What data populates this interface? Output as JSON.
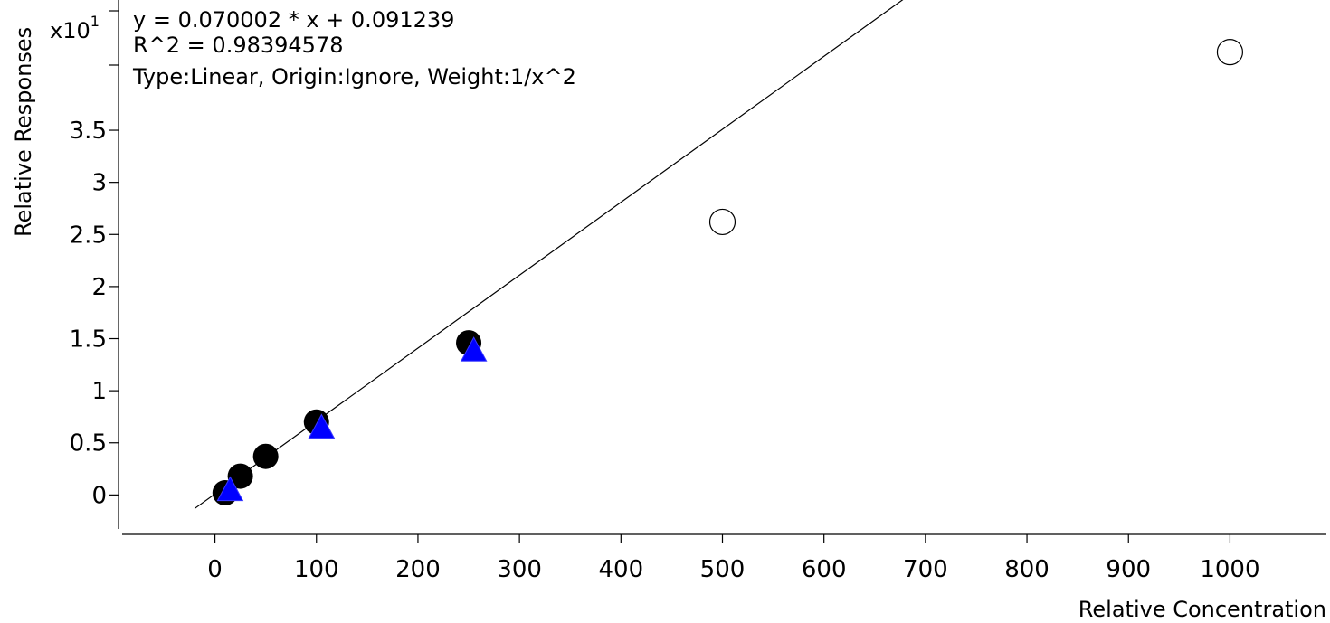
{
  "chart_data": {
    "type": "scatter",
    "xlabel": "Relative Concentration",
    "ylabel": "Relative Responses",
    "y_multiplier": {
      "base": "x10",
      "exponent": "1"
    },
    "xlim": [
      -95,
      1095
    ],
    "ylim": [
      -0.37,
      4.75
    ],
    "x_ticks": [
      0,
      100,
      200,
      300,
      400,
      500,
      600,
      700,
      800,
      900,
      1000
    ],
    "y_ticks": [
      0,
      0.5,
      1,
      1.5,
      2,
      2.5,
      3,
      3.5
    ],
    "annotations": [
      "y = 0.070002 * x  + 0.091239",
      "R^2 = 0.98394578",
      "Type:Linear, Origin:Ignore, Weight:1/x^2"
    ],
    "fit_line": {
      "slope": 0.070002,
      "intercept": 0.091239,
      "unit_scale": 10
    },
    "series": [
      {
        "marker": "filled-circle",
        "color": "#000000",
        "points": [
          [
            10,
            0.02
          ],
          [
            25,
            0.18
          ],
          [
            50,
            0.37
          ],
          [
            100,
            0.7
          ],
          [
            250,
            1.46
          ]
        ]
      },
      {
        "marker": "open-circle",
        "color": "#000000",
        "points": [
          [
            500,
            2.62
          ],
          [
            1000,
            4.25
          ]
        ]
      },
      {
        "marker": "triangle",
        "color": "#0000ff",
        "points": [
          [
            15,
            0.05
          ],
          [
            105,
            0.65
          ],
          [
            255,
            1.39
          ]
        ]
      }
    ]
  }
}
